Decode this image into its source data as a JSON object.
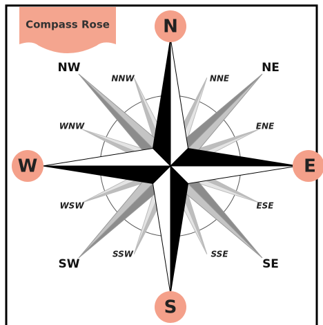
{
  "title": "Compass Rose",
  "cardinals": [
    "N",
    "E",
    "S",
    "W"
  ],
  "intercardinals": [
    "NE",
    "SE",
    "SW",
    "NW"
  ],
  "secondary": [
    "NNE",
    "ENE",
    "ESE",
    "SSE",
    "SSW",
    "WSW",
    "WNW",
    "NNW"
  ]
}
